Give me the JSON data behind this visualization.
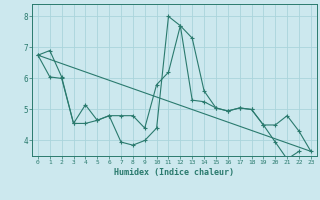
{
  "xlabel": "Humidex (Indice chaleur)",
  "xlim": [
    -0.5,
    23.5
  ],
  "ylim": [
    3.5,
    8.4
  ],
  "yticks": [
    4,
    5,
    6,
    7,
    8
  ],
  "xticks": [
    0,
    1,
    2,
    3,
    4,
    5,
    6,
    7,
    8,
    9,
    10,
    11,
    12,
    13,
    14,
    15,
    16,
    17,
    18,
    19,
    20,
    21,
    22,
    23
  ],
  "bg_color": "#cce8ee",
  "grid_color": "#aad4dc",
  "line_color": "#2a7a6e",
  "line1": {
    "x": [
      0,
      1,
      2,
      3,
      4,
      5,
      6,
      7,
      8,
      9,
      10,
      11,
      12,
      13,
      14,
      15,
      16,
      17,
      18,
      19,
      20,
      21,
      22
    ],
    "y": [
      6.75,
      6.9,
      6.05,
      4.55,
      5.15,
      4.65,
      4.8,
      3.95,
      3.85,
      4.0,
      4.4,
      8.0,
      7.7,
      7.3,
      5.6,
      5.05,
      4.95,
      5.05,
      5.0,
      4.5,
      3.95,
      3.4,
      3.65
    ]
  },
  "line2": {
    "x": [
      0,
      1,
      2,
      3,
      4,
      5,
      6,
      7,
      8,
      9,
      10,
      11,
      12,
      13,
      14,
      15,
      16,
      17,
      18,
      19,
      20,
      21,
      22,
      23
    ],
    "y": [
      6.75,
      6.05,
      6.0,
      4.55,
      4.55,
      4.65,
      4.8,
      4.8,
      4.8,
      4.4,
      5.8,
      6.2,
      7.7,
      5.3,
      5.25,
      5.05,
      4.95,
      5.05,
      5.0,
      4.5,
      4.5,
      4.8,
      4.3,
      3.65
    ]
  },
  "line3": {
    "x": [
      0,
      23
    ],
    "y": [
      6.75,
      3.65
    ]
  }
}
